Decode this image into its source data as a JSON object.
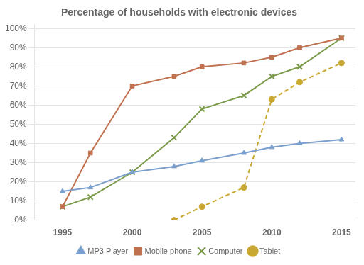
{
  "chart_data": {
    "type": "line",
    "title": "Percentage of households with electronic devices",
    "series": [
      {
        "name": "MP3 Player",
        "color": "#7b9fcc",
        "marker": "triangle",
        "line_style": "solid",
        "x": [
          1995,
          1997,
          2000,
          2003,
          2005,
          2008,
          2010,
          2012,
          2015
        ],
        "values": [
          15,
          17,
          25,
          28,
          31,
          35,
          38,
          40,
          42
        ]
      },
      {
        "name": "Mobile phone",
        "color": "#c0714f",
        "marker": "square",
        "line_style": "solid",
        "x": [
          1995,
          1997,
          2000,
          2003,
          2005,
          2008,
          2010,
          2012,
          2015
        ],
        "values": [
          7,
          35,
          70,
          75,
          80,
          82,
          85,
          90,
          95
        ]
      },
      {
        "name": "Computer",
        "color": "#7a9a4a",
        "marker": "x",
        "line_style": "solid",
        "x": [
          1995,
          1997,
          2000,
          2003,
          2005,
          2008,
          2010,
          2012,
          2015
        ],
        "values": [
          7,
          12,
          25,
          43,
          58,
          65,
          75,
          80,
          95
        ]
      },
      {
        "name": "Tablet",
        "color": "#c8a830",
        "marker": "circle",
        "line_style": "dashed",
        "x": [
          2003,
          2005,
          2008,
          2010,
          2012,
          2015
        ],
        "values": [
          0,
          7,
          17,
          63,
          72,
          82
        ]
      }
    ],
    "xlim": [
      1993,
      2016
    ],
    "ylim": [
      0,
      102
    ],
    "xticks": [
      1995,
      2000,
      2005,
      2010,
      2015
    ],
    "yticks": [
      {
        "value": 0,
        "label": "0%"
      },
      {
        "value": 10,
        "label": "10%"
      },
      {
        "value": 20,
        "label": "20%"
      },
      {
        "value": 30,
        "label": "30%"
      },
      {
        "value": 40,
        "label": "40%"
      },
      {
        "value": 50,
        "label": "50%"
      },
      {
        "value": 60,
        "label": "60%"
      },
      {
        "value": 70,
        "label": "70%"
      },
      {
        "value": 80,
        "label": "80%"
      },
      {
        "value": 90,
        "label": "90%"
      },
      {
        "value": 100,
        "label": "100%"
      }
    ],
    "grid": "y",
    "legend": "bottom"
  }
}
